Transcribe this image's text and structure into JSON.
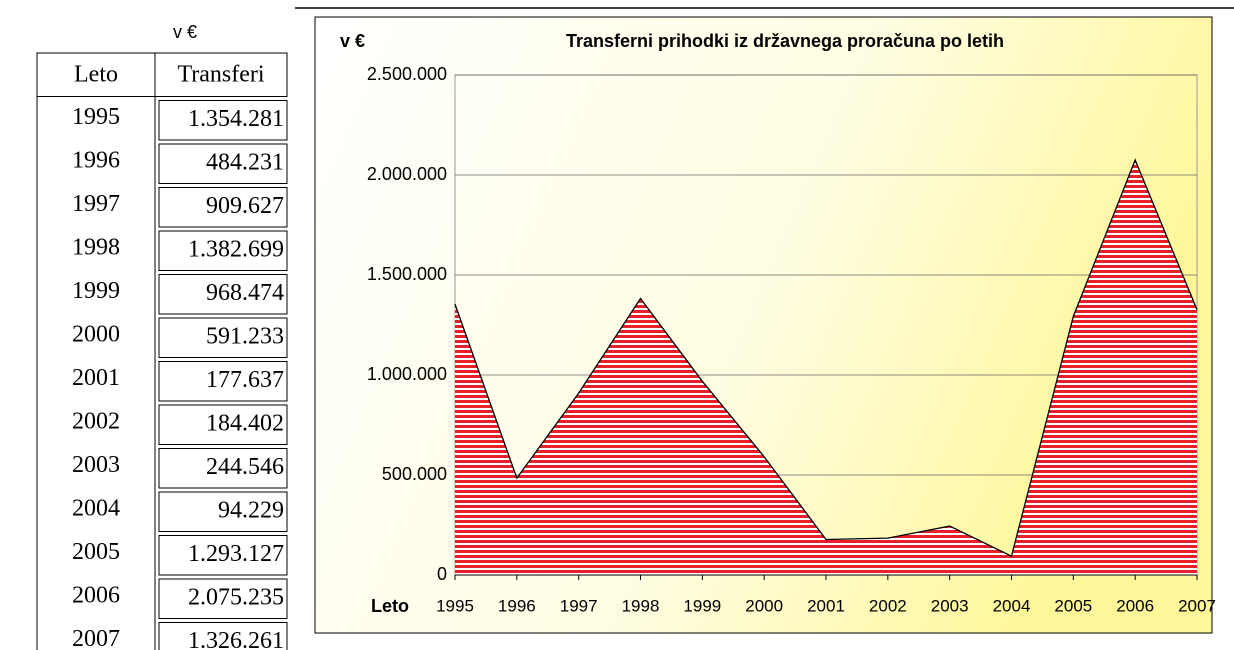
{
  "table": {
    "unit": "v €",
    "header": [
      "Leto",
      "Transferi"
    ],
    "rows": [
      [
        "1995",
        "1.354.281"
      ],
      [
        "1996",
        "484.231"
      ],
      [
        "1997",
        "909.627"
      ],
      [
        "1998",
        "1.382.699"
      ],
      [
        "1999",
        "968.474"
      ],
      [
        "2000",
        "591.233"
      ],
      [
        "2001",
        "177.637"
      ],
      [
        "2002",
        "184.402"
      ],
      [
        "2003",
        "244.546"
      ],
      [
        "2004",
        "94.229"
      ],
      [
        "2005",
        "1.293.127"
      ],
      [
        "2006",
        "2.075.235"
      ],
      [
        "2007",
        "1.326.261"
      ]
    ]
  },
  "chart_data": {
    "type": "area",
    "title": "Transferni prihodki iz državnega proračuna po letih",
    "y_label": "v €",
    "x_label": "Leto",
    "color": "#e8202a",
    "categories": [
      "1995",
      "1996",
      "1997",
      "1998",
      "1999",
      "2000",
      "2001",
      "2002",
      "2003",
      "2004",
      "2005",
      "2006",
      "2007"
    ],
    "values": [
      1354281,
      484231,
      909627,
      1382699,
      968474,
      591233,
      177637,
      184402,
      244546,
      94229,
      1293127,
      2075235,
      1326261
    ],
    "ylim": [
      0,
      2500000
    ],
    "yticks": [
      0,
      {
        "value": 500000,
        "label": "500.000"
      },
      {
        "value": 1000000,
        "label": "1.000.000"
      },
      {
        "value": 1500000,
        "label": "1.500.000"
      },
      {
        "value": 2000000,
        "label": "2.000.000"
      },
      {
        "value": 2500000,
        "label": "2.500.000"
      }
    ],
    "grid": true
  }
}
